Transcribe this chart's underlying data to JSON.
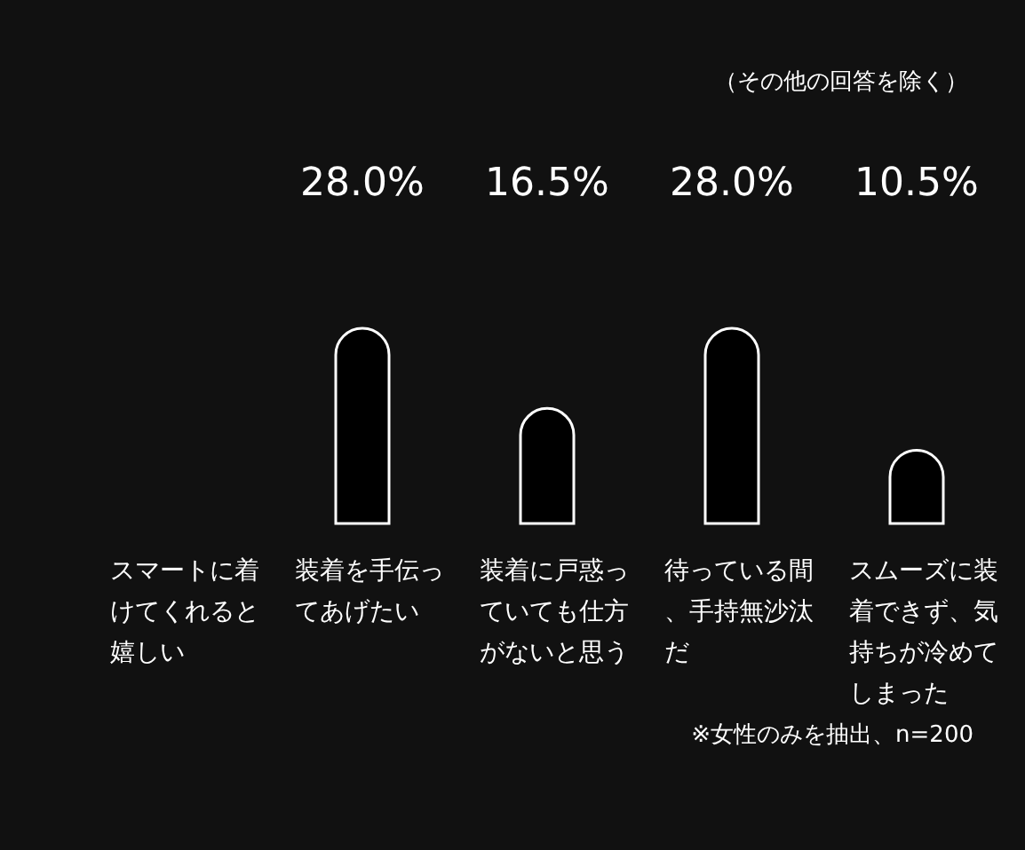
{
  "chart_data": {
    "type": "bar",
    "categories": [
      "スマートに着けてくれると嬉しい",
      "装着を手伝ってあげたい",
      "装着に戸惑っていても仕方がないと思う",
      "待っている間、手持無沙汰だ",
      "スムーズに装着できず、気持ちが冷めてしまった"
    ],
    "values": [
      null,
      28.0,
      16.5,
      28.0,
      10.5
    ],
    "value_labels": [
      null,
      "28.0%",
      "16.5%",
      "28.0%",
      "10.5%"
    ],
    "color": "#000000",
    "annotations": [
      "（その他の回答を除く）",
      "※女性のみを抽出、n=200"
    ]
  }
}
